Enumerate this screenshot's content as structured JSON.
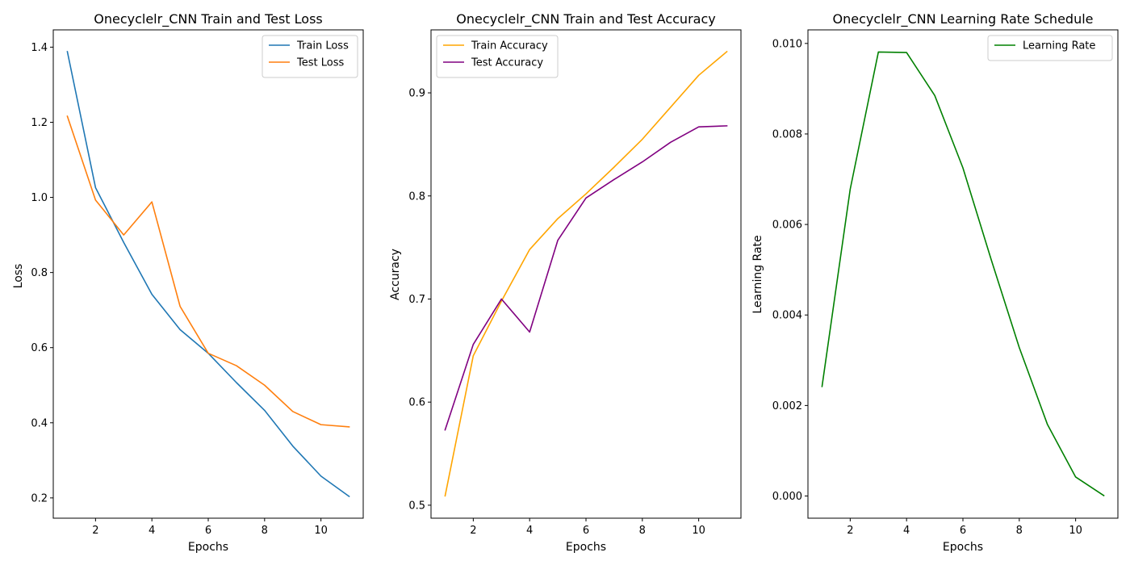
{
  "figure": {
    "background": "#ffffff"
  },
  "chart_data": [
    {
      "type": "line",
      "title": "Onecyclelr_CNN Train and Test Loss",
      "xlabel": "Epochs",
      "ylabel": "Loss",
      "x": [
        1,
        2,
        3,
        4,
        5,
        6,
        7,
        8,
        9,
        10,
        11
      ],
      "xlim": [
        0.5,
        11.5
      ],
      "ylim": [
        0.146,
        1.446
      ],
      "xticks": [
        2,
        4,
        6,
        8,
        10
      ],
      "xtick_labels": [
        "2",
        "4",
        "6",
        "8",
        "10"
      ],
      "yticks": [
        0.2,
        0.4,
        0.6,
        0.8,
        1.0,
        1.2,
        1.4
      ],
      "ytick_labels": [
        "0.2",
        "0.4",
        "0.6",
        "0.8",
        "1.0",
        "1.2",
        "1.4"
      ],
      "grid": false,
      "legend_position": "top-right",
      "series": [
        {
          "name": "Train Loss",
          "color": "#1f77b4",
          "values": [
            1.388,
            1.026,
            0.88,
            0.742,
            0.648,
            0.585,
            0.507,
            0.433,
            0.338,
            0.258,
            0.204
          ]
        },
        {
          "name": "Test Loss",
          "color": "#ff7f0e",
          "values": [
            1.216,
            0.993,
            0.9,
            0.988,
            0.71,
            0.585,
            0.552,
            0.5,
            0.43,
            0.395,
            0.389
          ]
        }
      ]
    },
    {
      "type": "line",
      "title": "Onecyclelr_CNN Train and Test Accuracy",
      "xlabel": "Epochs",
      "ylabel": "Accuracy",
      "x": [
        1,
        2,
        3,
        4,
        5,
        6,
        7,
        8,
        9,
        10,
        11
      ],
      "xlim": [
        0.5,
        11.5
      ],
      "ylim": [
        0.4874,
        0.9611
      ],
      "xticks": [
        2,
        4,
        6,
        8,
        10
      ],
      "xtick_labels": [
        "2",
        "4",
        "6",
        "8",
        "10"
      ],
      "yticks": [
        0.5,
        0.6,
        0.7,
        0.8,
        0.9
      ],
      "ytick_labels": [
        "0.5",
        "0.6",
        "0.7",
        "0.8",
        "0.9"
      ],
      "grid": false,
      "legend_position": "top-left",
      "series": [
        {
          "name": "Train Accuracy",
          "color": "#ffa500",
          "values": [
            0.509,
            0.645,
            0.698,
            0.748,
            0.778,
            0.802,
            0.828,
            0.855,
            0.886,
            0.917,
            0.94
          ]
        },
        {
          "name": "Test Accuracy",
          "color": "#800080",
          "values": [
            0.573,
            0.656,
            0.7,
            0.668,
            0.757,
            0.798,
            0.816,
            0.833,
            0.852,
            0.867,
            0.868
          ]
        }
      ]
    },
    {
      "type": "line",
      "title": "Onecyclelr_CNN Learning Rate Schedule",
      "xlabel": "Epochs",
      "ylabel": "Learning Rate",
      "x": [
        1,
        2,
        3,
        4,
        5,
        6,
        7,
        8,
        9,
        10,
        11
      ],
      "xlim": [
        0.5,
        11.5
      ],
      "ylim": [
        -0.00049,
        0.0103
      ],
      "xticks": [
        2,
        4,
        6,
        8,
        10
      ],
      "xtick_labels": [
        "2",
        "4",
        "6",
        "8",
        "10"
      ],
      "yticks": [
        0.0,
        0.002,
        0.004,
        0.006,
        0.008,
        0.01
      ],
      "ytick_labels": [
        "0.000",
        "0.002",
        "0.004",
        "0.006",
        "0.008",
        "0.010"
      ],
      "grid": false,
      "legend_position": "top-right",
      "series": [
        {
          "name": "Learning Rate",
          "color": "#008000",
          "values": [
            0.00242,
            0.00678,
            0.00981,
            0.0098,
            0.00885,
            0.00725,
            0.00523,
            0.00328,
            0.00158,
            0.00042,
            1e-05
          ]
        }
      ]
    }
  ]
}
